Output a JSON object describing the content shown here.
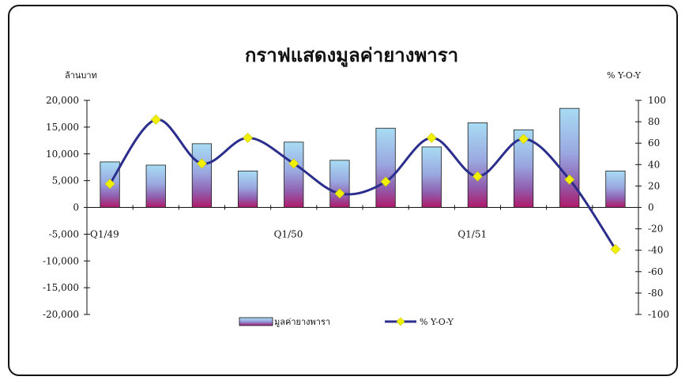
{
  "chart_data": {
    "type": "bar",
    "title": "กราฟแสดงมูลค่ายางพารา",
    "ylabel_left": "ล้านบาท",
    "ylabel_right": "% Y-O-Y",
    "ylim_left": [
      -20000,
      20000
    ],
    "yticks_left": [
      "20,000",
      "15,000",
      "10,000",
      "5,000",
      "0",
      "-5,000",
      "-10,000",
      "-15,000",
      "-20,000"
    ],
    "ylim_right": [
      -100,
      100
    ],
    "yticks_right": [
      "100",
      "80",
      "60",
      "40",
      "20",
      "0",
      "-20",
      "-40",
      "-60",
      "-80",
      "-100"
    ],
    "categories": [
      "Q1/49",
      "",
      "",
      "",
      "Q1/50",
      "",
      "",
      "",
      "Q1/51",
      "",
      "",
      ""
    ],
    "x_tick_labels": [
      "Q1/49",
      "Q1/50",
      "Q1/51"
    ],
    "series": [
      {
        "name": "มูลค่ายางพารา",
        "type": "bar",
        "axis": "left",
        "values": [
          8500,
          7900,
          11900,
          6800,
          12200,
          8800,
          14800,
          11300,
          15800,
          14500,
          18500,
          6800
        ]
      },
      {
        "name": "% Y-O-Y",
        "type": "line",
        "axis": "right",
        "values": [
          22,
          82,
          41,
          65,
          41,
          13,
          24,
          65,
          29,
          64,
          26,
          -39
        ]
      }
    ],
    "legend": "bottom-center",
    "grid": false
  },
  "colors": {
    "bar_top": "#a8dcf4",
    "bar_mid": "#8a7cc8",
    "bar_bottom": "#b01a6a",
    "line": "#2b2e8c",
    "marker": "#f0f000"
  }
}
